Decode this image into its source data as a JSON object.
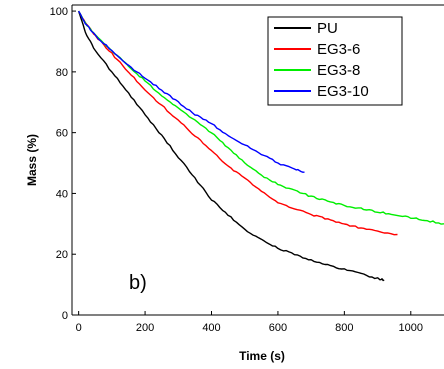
{
  "chart_data": {
    "type": "line",
    "xlabel": "Time (s)",
    "ylabel": "Mass (%)",
    "xlim": [
      -20,
      1100
    ],
    "ylim": [
      0,
      102
    ],
    "xticks": [
      0,
      200,
      400,
      600,
      800,
      1000
    ],
    "yticks": [
      0,
      20,
      40,
      60,
      80,
      100
    ],
    "grid": false,
    "legend_position": "top-right",
    "annotation": "b)",
    "series": [
      {
        "name": "PU",
        "color": "#000000",
        "points": [
          [
            0,
            100
          ],
          [
            20,
            93
          ],
          [
            50,
            87
          ],
          [
            100,
            80
          ],
          [
            150,
            73
          ],
          [
            200,
            66
          ],
          [
            250,
            59
          ],
          [
            300,
            52
          ],
          [
            350,
            45
          ],
          [
            400,
            38
          ],
          [
            450,
            33
          ],
          [
            500,
            28
          ],
          [
            550,
            25
          ],
          [
            600,
            22
          ],
          [
            650,
            20
          ],
          [
            700,
            18
          ],
          [
            750,
            16.5
          ],
          [
            800,
            15
          ],
          [
            850,
            13.5
          ],
          [
            900,
            12
          ],
          [
            920,
            11.5
          ]
        ]
      },
      {
        "name": "EG3-6",
        "color": "#ff0000",
        "points": [
          [
            0,
            100
          ],
          [
            20,
            96
          ],
          [
            50,
            92
          ],
          [
            100,
            86
          ],
          [
            150,
            80
          ],
          [
            200,
            74
          ],
          [
            250,
            69
          ],
          [
            300,
            64
          ],
          [
            350,
            59
          ],
          [
            400,
            54
          ],
          [
            450,
            49
          ],
          [
            500,
            45
          ],
          [
            550,
            41
          ],
          [
            600,
            37
          ],
          [
            650,
            35
          ],
          [
            700,
            33
          ],
          [
            750,
            31.5
          ],
          [
            800,
            30
          ],
          [
            850,
            28.5
          ],
          [
            900,
            27.5
          ],
          [
            960,
            26.5
          ]
        ]
      },
      {
        "name": "EG3-8",
        "color": "#00ee00",
        "points": [
          [
            0,
            100
          ],
          [
            20,
            96
          ],
          [
            50,
            92
          ],
          [
            100,
            87
          ],
          [
            150,
            82
          ],
          [
            200,
            77
          ],
          [
            250,
            72
          ],
          [
            300,
            68
          ],
          [
            350,
            64
          ],
          [
            400,
            60
          ],
          [
            450,
            55
          ],
          [
            500,
            50
          ],
          [
            550,
            46
          ],
          [
            600,
            43
          ],
          [
            650,
            41
          ],
          [
            700,
            39
          ],
          [
            750,
            37.5
          ],
          [
            800,
            36
          ],
          [
            850,
            35
          ],
          [
            900,
            34
          ],
          [
            950,
            33
          ],
          [
            1000,
            32
          ],
          [
            1050,
            31
          ],
          [
            1100,
            30
          ]
        ]
      },
      {
        "name": "EG3-10",
        "color": "#0000ff",
        "points": [
          [
            0,
            100
          ],
          [
            20,
            96
          ],
          [
            50,
            92
          ],
          [
            100,
            87
          ],
          [
            150,
            82
          ],
          [
            200,
            78
          ],
          [
            250,
            74
          ],
          [
            300,
            70
          ],
          [
            350,
            66
          ],
          [
            400,
            63
          ],
          [
            450,
            59
          ],
          [
            500,
            56
          ],
          [
            550,
            53
          ],
          [
            600,
            50
          ],
          [
            650,
            48
          ],
          [
            680,
            47
          ]
        ]
      }
    ]
  }
}
